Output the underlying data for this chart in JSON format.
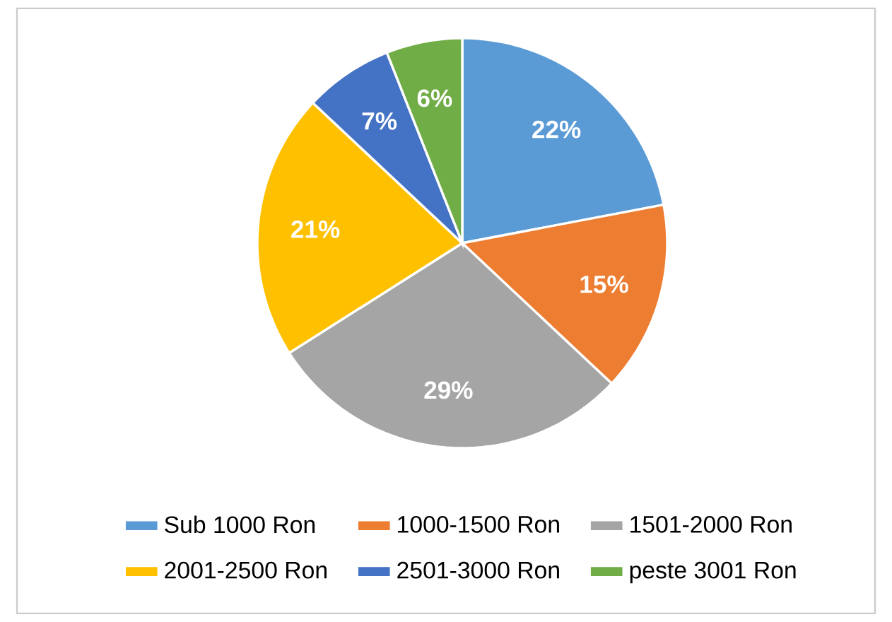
{
  "chart_data": {
    "type": "pie",
    "categories": [
      "Sub 1000 Ron",
      "1000-1500 Ron",
      "1501-2000 Ron",
      "2001-2500 Ron",
      "2501-3000 Ron",
      "peste 3001 Ron"
    ],
    "values": [
      22,
      15,
      29,
      21,
      7,
      6
    ],
    "colors": [
      "#5b9bd5",
      "#ed7d31",
      "#a5a5a5",
      "#ffc000",
      "#4472c4",
      "#70ad47"
    ],
    "value_labels": [
      "22%",
      "15%",
      "29%",
      "21%",
      "7%",
      "6%"
    ],
    "legend": "bottom"
  }
}
